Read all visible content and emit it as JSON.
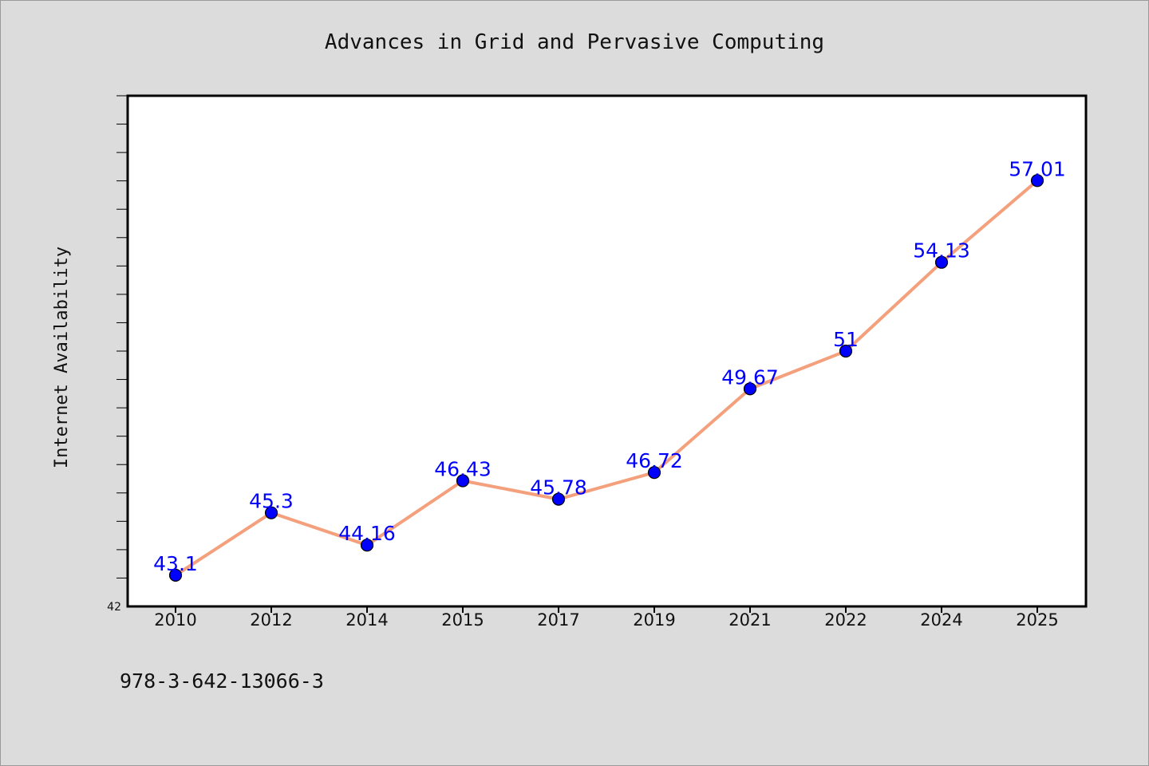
{
  "chart_data": {
    "type": "line",
    "title": "Advances in Grid and Pervasive Computing",
    "xlabel": "",
    "ylabel": "Internet Availability",
    "categories": [
      "2010",
      "2012",
      "2014",
      "2015",
      "2017",
      "2019",
      "2021",
      "2022",
      "2024",
      "2025"
    ],
    "series": [
      {
        "values": [
          43.1,
          45.3,
          44.16,
          46.43,
          45.78,
          46.72,
          49.67,
          51,
          54.13,
          57.01
        ],
        "data_labels": [
          "43.1",
          "45.3",
          "44.16",
          "46.43",
          "45.78",
          "46.72",
          "49.67",
          "51",
          "54.13",
          "57.01"
        ]
      }
    ],
    "ylim": [
      42,
      60
    ],
    "y_tick_labels": [
      "42"
    ],
    "grid": false,
    "legend": "none",
    "colors": {
      "line": "#f4a07c",
      "marker": "#0000ff",
      "data_label": "#0000ff",
      "plot_background": "#ffffff",
      "figure_background": "#dcdcdc"
    }
  },
  "footer_text": "978-3-642-13066-3"
}
